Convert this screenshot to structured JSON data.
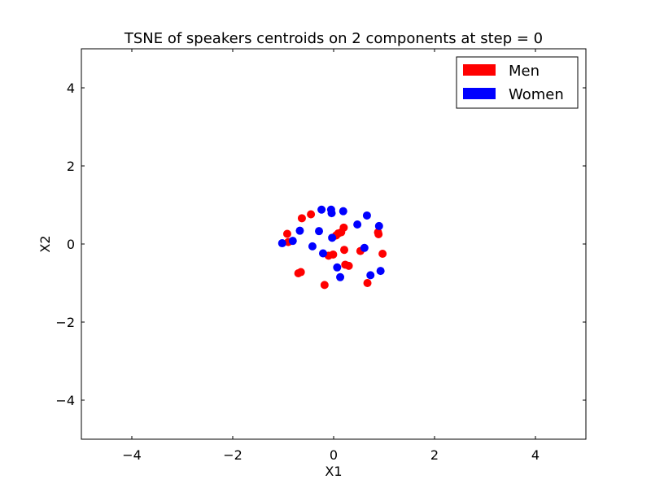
{
  "chart_data": {
    "type": "scatter",
    "title": "TSNE of speakers centroids on 2 components at step = 0",
    "xlabel": "X1",
    "ylabel": "X2",
    "xlim": [
      -5,
      5
    ],
    "ylim": [
      -5,
      5
    ],
    "xticks": [
      -4,
      -2,
      0,
      2,
      4
    ],
    "yticks": [
      -4,
      -2,
      0,
      2,
      4
    ],
    "xtick_labels": [
      "−4",
      "−2",
      "0",
      "2",
      "4"
    ],
    "ytick_labels": [
      "−4",
      "−2",
      "0",
      "2",
      "4"
    ],
    "grid": false,
    "legend_position": "top-right",
    "series": [
      {
        "name": "Men",
        "color": "#ff0000",
        "points": [
          [
            -0.92,
            0.26
          ],
          [
            -0.9,
            0.05
          ],
          [
            -0.63,
            0.66
          ],
          [
            -0.45,
            0.76
          ],
          [
            -0.7,
            -0.75
          ],
          [
            -0.65,
            -0.72
          ],
          [
            -0.18,
            -1.05
          ],
          [
            -0.1,
            -0.3
          ],
          [
            -0.01,
            -0.27
          ],
          [
            0.05,
            0.22
          ],
          [
            0.09,
            0.27
          ],
          [
            0.15,
            0.3
          ],
          [
            0.2,
            0.42
          ],
          [
            0.21,
            -0.15
          ],
          [
            0.23,
            -0.53
          ],
          [
            0.3,
            -0.56
          ],
          [
            0.53,
            -0.18
          ],
          [
            0.67,
            -1.0
          ],
          [
            0.88,
            0.3
          ],
          [
            0.89,
            0.25
          ],
          [
            0.97,
            -0.25
          ]
        ]
      },
      {
        "name": "Women",
        "color": "#0000ff",
        "points": [
          [
            -1.02,
            0.02
          ],
          [
            -0.81,
            0.08
          ],
          [
            -0.67,
            0.34
          ],
          [
            -0.42,
            -0.06
          ],
          [
            -0.29,
            0.33
          ],
          [
            -0.24,
            0.88
          ],
          [
            -0.21,
            -0.24
          ],
          [
            -0.05,
            0.88
          ],
          [
            -0.04,
            0.79
          ],
          [
            -0.03,
            0.16
          ],
          [
            0.07,
            -0.6
          ],
          [
            0.13,
            -0.85
          ],
          [
            0.19,
            0.84
          ],
          [
            0.47,
            0.5
          ],
          [
            0.61,
            -0.1
          ],
          [
            0.66,
            0.73
          ],
          [
            0.73,
            -0.8
          ],
          [
            0.9,
            0.46
          ],
          [
            0.93,
            -0.69
          ]
        ]
      }
    ]
  }
}
